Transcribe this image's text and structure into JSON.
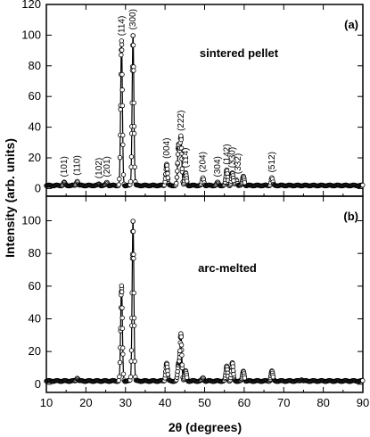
{
  "chart_data": [
    {
      "type": "scatter",
      "panel_label": "(a)",
      "sample_label": "sintered pellet",
      "xlabel": "2θ (degrees)",
      "ylabel": "Intensity (arb. units)",
      "xlim": [
        10,
        90
      ],
      "ylim": [
        -5,
        120
      ],
      "xticks": [
        10,
        20,
        30,
        40,
        50,
        60,
        70,
        80,
        90
      ],
      "yticks": [
        0,
        20,
        40,
        60,
        80,
        100,
        120
      ],
      "marker": "open-circle",
      "background_level": 2,
      "peaks": [
        {
          "x": 14.5,
          "y": 4
        },
        {
          "x": 17.8,
          "y": 5
        },
        {
          "x": 23.3,
          "y": 3
        },
        {
          "x": 25.3,
          "y": 4
        },
        {
          "x": 29.0,
          "y": 96
        },
        {
          "x": 31.9,
          "y": 100
        },
        {
          "x": 40.4,
          "y": 16
        },
        {
          "x": 43.4,
          "y": 28
        },
        {
          "x": 44.0,
          "y": 34
        },
        {
          "x": 45.2,
          "y": 10
        },
        {
          "x": 49.6,
          "y": 7
        },
        {
          "x": 53.3,
          "y": 4
        },
        {
          "x": 55.6,
          "y": 12
        },
        {
          "x": 57.0,
          "y": 10
        },
        {
          "x": 58.0,
          "y": 6
        },
        {
          "x": 59.8,
          "y": 8
        },
        {
          "x": 67.0,
          "y": 7
        }
      ],
      "annotations": [
        {
          "text": "(101)",
          "x": 14.5
        },
        {
          "text": "(110)",
          "x": 17.8
        },
        {
          "text": "(102)",
          "x": 23.3
        },
        {
          "text": "(201)",
          "x": 25.3
        },
        {
          "text": "(114)",
          "x": 29.0
        },
        {
          "text": "(300)",
          "x": 31.9
        },
        {
          "text": "(004)",
          "x": 40.4
        },
        {
          "text": "(222)",
          "x": 44.0
        },
        {
          "text": "(114)",
          "x": 45.2
        },
        {
          "text": "(204)",
          "x": 49.6
        },
        {
          "text": "(304)",
          "x": 53.3
        },
        {
          "text": "(142)",
          "x": 55.6
        },
        {
          "text": "(330)",
          "x": 57.0
        },
        {
          "text": "(332)",
          "x": 58.4
        },
        {
          "text": "(512)",
          "x": 67.0
        }
      ]
    },
    {
      "type": "scatter",
      "panel_label": "(b)",
      "sample_label": "arc-melted",
      "xlabel": "2θ (degrees)",
      "ylabel": "Intensity (arb. units)",
      "xlim": [
        10,
        90
      ],
      "ylim": [
        -5,
        115
      ],
      "xticks": [
        10,
        20,
        30,
        40,
        50,
        60,
        70,
        80,
        90
      ],
      "yticks": [
        0,
        20,
        40,
        60,
        80,
        100
      ],
      "marker": "open-circle",
      "background_level": 2,
      "peaks": [
        {
          "x": 17.8,
          "y": 4
        },
        {
          "x": 29.0,
          "y": 60
        },
        {
          "x": 31.9,
          "y": 100
        },
        {
          "x": 40.4,
          "y": 13
        },
        {
          "x": 43.4,
          "y": 12
        },
        {
          "x": 44.0,
          "y": 31
        },
        {
          "x": 45.2,
          "y": 8
        },
        {
          "x": 49.6,
          "y": 4
        },
        {
          "x": 55.6,
          "y": 11
        },
        {
          "x": 57.0,
          "y": 13
        },
        {
          "x": 59.8,
          "y": 8
        },
        {
          "x": 67.0,
          "y": 8
        },
        {
          "x": 74.5,
          "y": 3
        }
      ]
    }
  ]
}
